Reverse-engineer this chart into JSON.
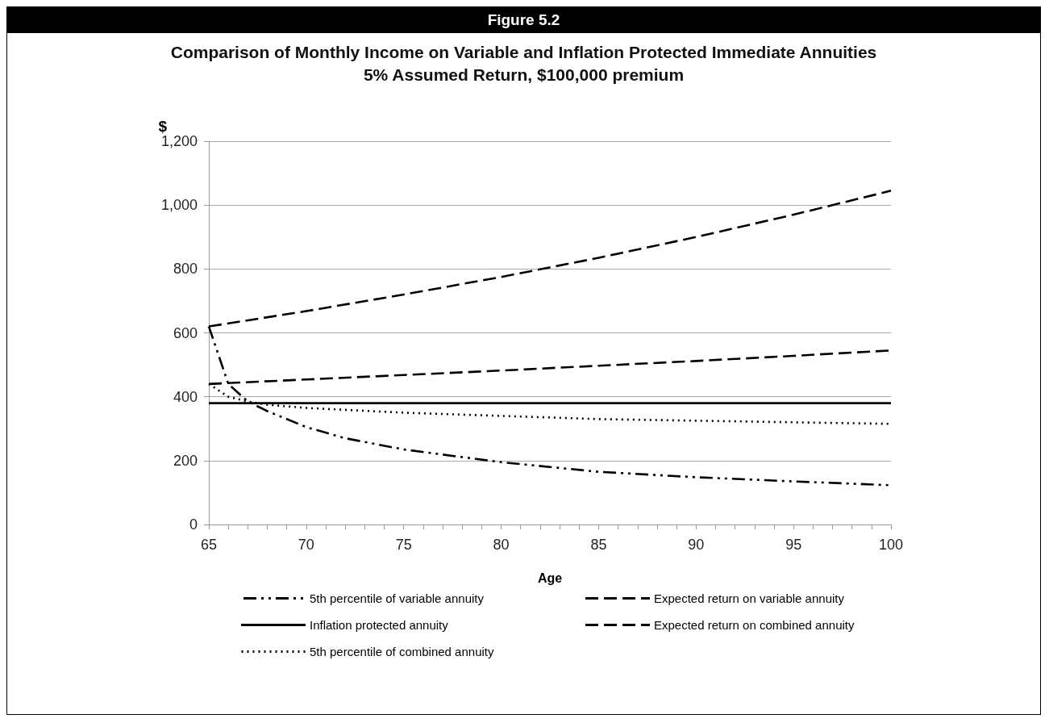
{
  "chart_data": {
    "type": "line",
    "title": "Figure 5.2",
    "subtitle": "Comparison of Monthly Income on Variable and Inflation Protected Immediate Annuities\n5% Assumed Return, $100,000 premium",
    "xlabel": "Age",
    "ylabel": "$",
    "xlim": [
      65,
      100
    ],
    "xticks": [
      65,
      {
        "value": 66,
        "label": null
      },
      {
        "value": 67,
        "label": null
      },
      {
        "value": 68,
        "label": null
      },
      {
        "value": 69,
        "label": null
      },
      70,
      {
        "value": 71,
        "label": null
      },
      {
        "value": 72,
        "label": null
      },
      {
        "value": 73,
        "label": null
      },
      {
        "value": 74,
        "label": null
      },
      75,
      {
        "value": 76,
        "label": null
      },
      {
        "value": 77,
        "label": null
      },
      {
        "value": 78,
        "label": null
      },
      {
        "value": 79,
        "label": null
      },
      80,
      {
        "value": 81,
        "label": null
      },
      {
        "value": 82,
        "label": null
      },
      {
        "value": 83,
        "label": null
      },
      {
        "value": 84,
        "label": null
      },
      85,
      {
        "value": 86,
        "label": null
      },
      {
        "value": 87,
        "label": null
      },
      {
        "value": 88,
        "label": null
      },
      {
        "value": 89,
        "label": null
      },
      90,
      {
        "value": 91,
        "label": null
      },
      {
        "value": 92,
        "label": null
      },
      {
        "value": 93,
        "label": null
      },
      {
        "value": 94,
        "label": null
      },
      95,
      {
        "value": 96,
        "label": null
      },
      {
        "value": 97,
        "label": null
      },
      {
        "value": 98,
        "label": null
      },
      {
        "value": 99,
        "label": null
      },
      100
    ],
    "ylim": [
      0,
      1200
    ],
    "yticks": [
      0,
      200,
      400,
      600,
      800,
      {
        "value": 1000,
        "label": "1,000"
      },
      {
        "value": 1200,
        "label": "1,200"
      }
    ],
    "grid": "y",
    "legend": "bottom",
    "marker": "none",
    "series": [
      {
        "name": "5th percentile of variable annuity",
        "color": "#000000",
        "line_style": "dashdot",
        "x": [
          65,
          66,
          67,
          68,
          70,
          72,
          75,
          80,
          85,
          90,
          95,
          100
        ],
        "values": [
          620,
          440,
          385,
          355,
          305,
          270,
          235,
          195,
          165,
          148,
          135,
          123
        ]
      },
      {
        "name": "Expected return on variable annuity",
        "color": "#000000",
        "line_style": "dashed",
        "x": [
          65,
          70,
          75,
          80,
          85,
          90,
          95,
          100
        ],
        "values": [
          620,
          668,
          720,
          775,
          835,
          900,
          970,
          1045
        ]
      },
      {
        "name": "Inflation protected annuity",
        "color": "#000000",
        "line_style": "solid",
        "x": [
          65,
          100
        ],
        "values": [
          380,
          380
        ]
      },
      {
        "name": "Expected return on combined annuity",
        "color": "#000000",
        "line_style": "dashed",
        "x": [
          65,
          70,
          75,
          80,
          85,
          90,
          95,
          100
        ],
        "values": [
          440,
          454,
          468,
          482,
          497,
          512,
          528,
          545
        ]
      },
      {
        "name": "5th percentile of combined annuity",
        "color": "#000000",
        "line_style": "dotted",
        "x": [
          65,
          66,
          67,
          68,
          70,
          75,
          80,
          85,
          90,
          95,
          100
        ],
        "values": [
          440,
          400,
          385,
          375,
          365,
          350,
          340,
          330,
          325,
          320,
          315
        ]
      }
    ]
  }
}
